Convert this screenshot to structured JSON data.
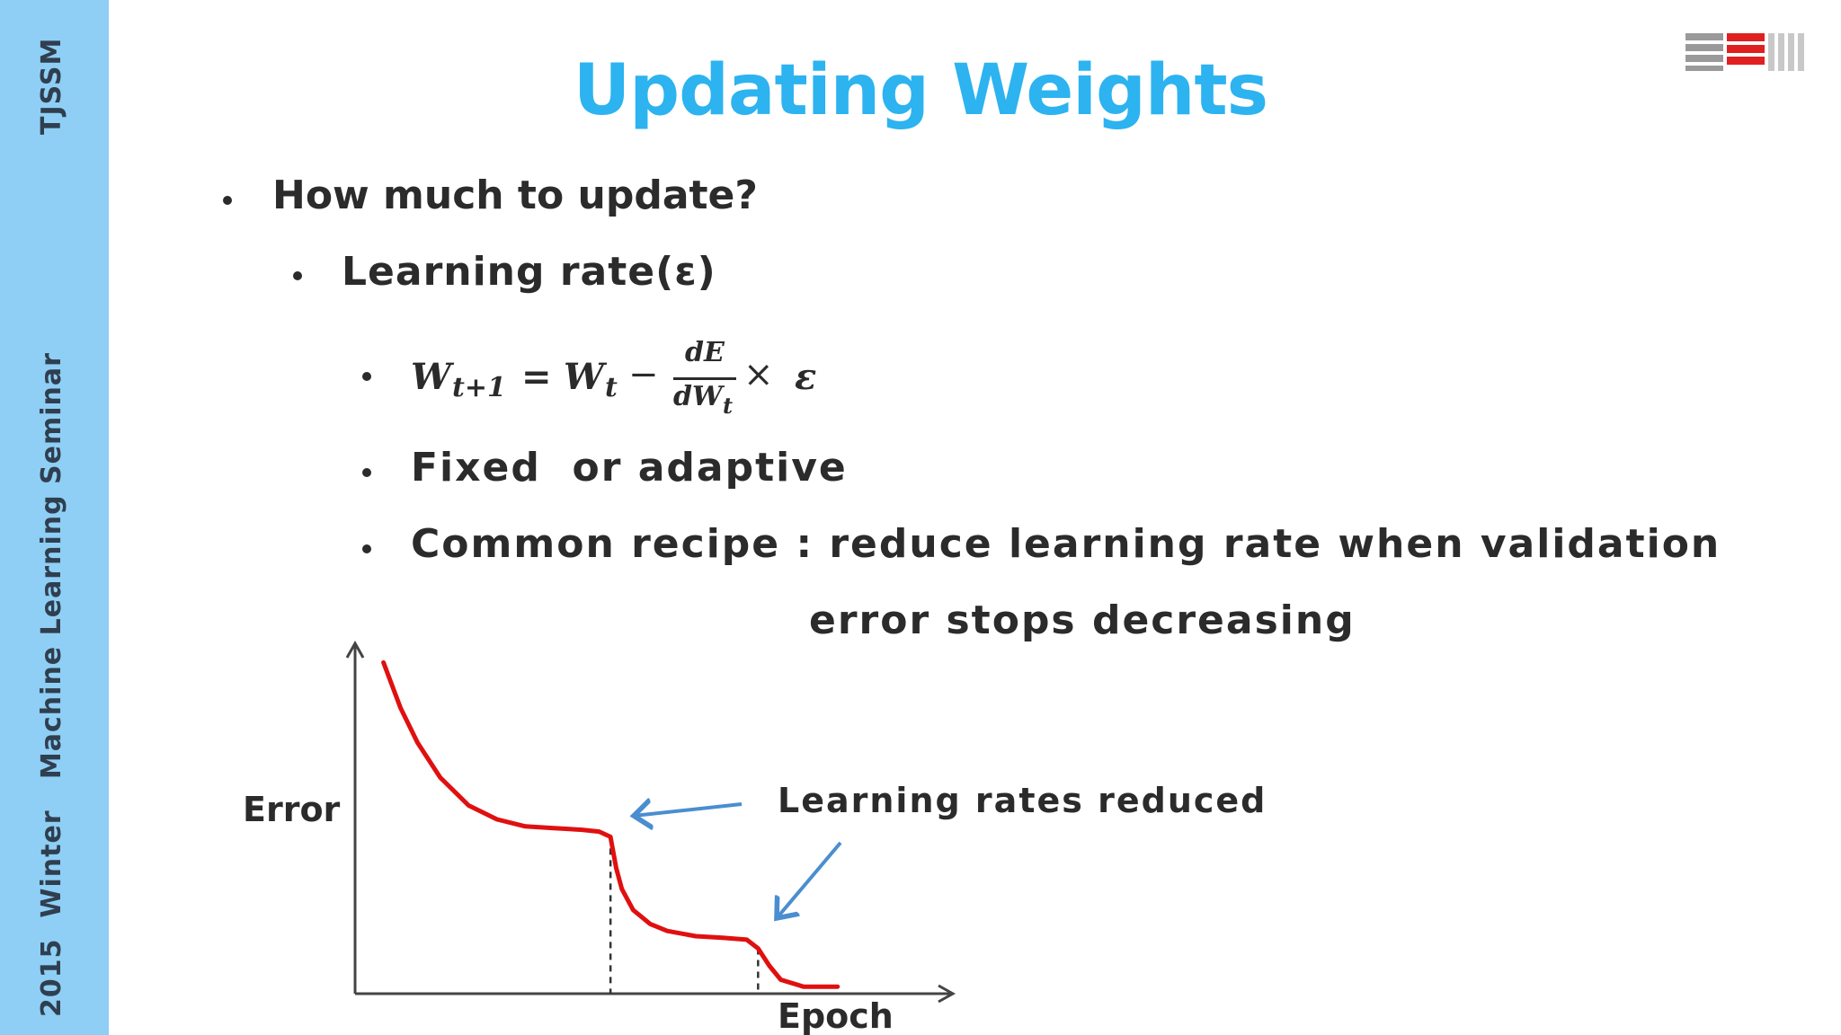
{
  "sidebar": {
    "top_text": "TJSSM",
    "bottom_text": "2015  Winter   Machine Learning Seminar",
    "color": "#8fcff5"
  },
  "logo": {
    "icon": "tjssm-logo-icon",
    "colors": [
      "#9a9a9a",
      "#e02020",
      "#c8c8c8"
    ]
  },
  "title": "Updating Weights",
  "title_color": "#2cb3f0",
  "bullets": {
    "level1": "How much to update?",
    "level2": "Learning rate(ε)",
    "formula": {
      "lhs": "W",
      "lhs_sub": "t+1",
      "equals": "=",
      "w": "W",
      "w_sub": "t",
      "minus": "−",
      "num": "dE",
      "den": "dW",
      "den_sub": "t",
      "times": "×",
      "eps": "ε"
    },
    "fixed": "Fixed  or adaptive",
    "recipe_line1": "Common recipe : reduce learning rate when validation",
    "recipe_line2": "error stops decreasing"
  },
  "chart_data": {
    "type": "line",
    "xlabel": "Epoch",
    "ylabel": "Error",
    "annotation": "Learning  rates  reduced",
    "series": [
      {
        "color": "#e01010",
        "x": [
          0,
          3,
          6,
          10,
          15,
          20,
          25,
          30,
          35,
          38,
          40,
          41,
          42,
          44,
          47,
          50,
          55,
          60,
          64,
          66,
          68,
          70,
          74,
          80
        ],
        "y": [
          95,
          82,
          72,
          62,
          54,
          50,
          48,
          47.5,
          47,
          46.5,
          45,
          36,
          30,
          24,
          20,
          18,
          16.5,
          16,
          15.5,
          13,
          8,
          4,
          2,
          2
        ]
      }
    ],
    "reductions_x": [
      40,
      66
    ],
    "xlim": [
      -5,
      100
    ],
    "ylim": [
      0,
      100
    ]
  }
}
